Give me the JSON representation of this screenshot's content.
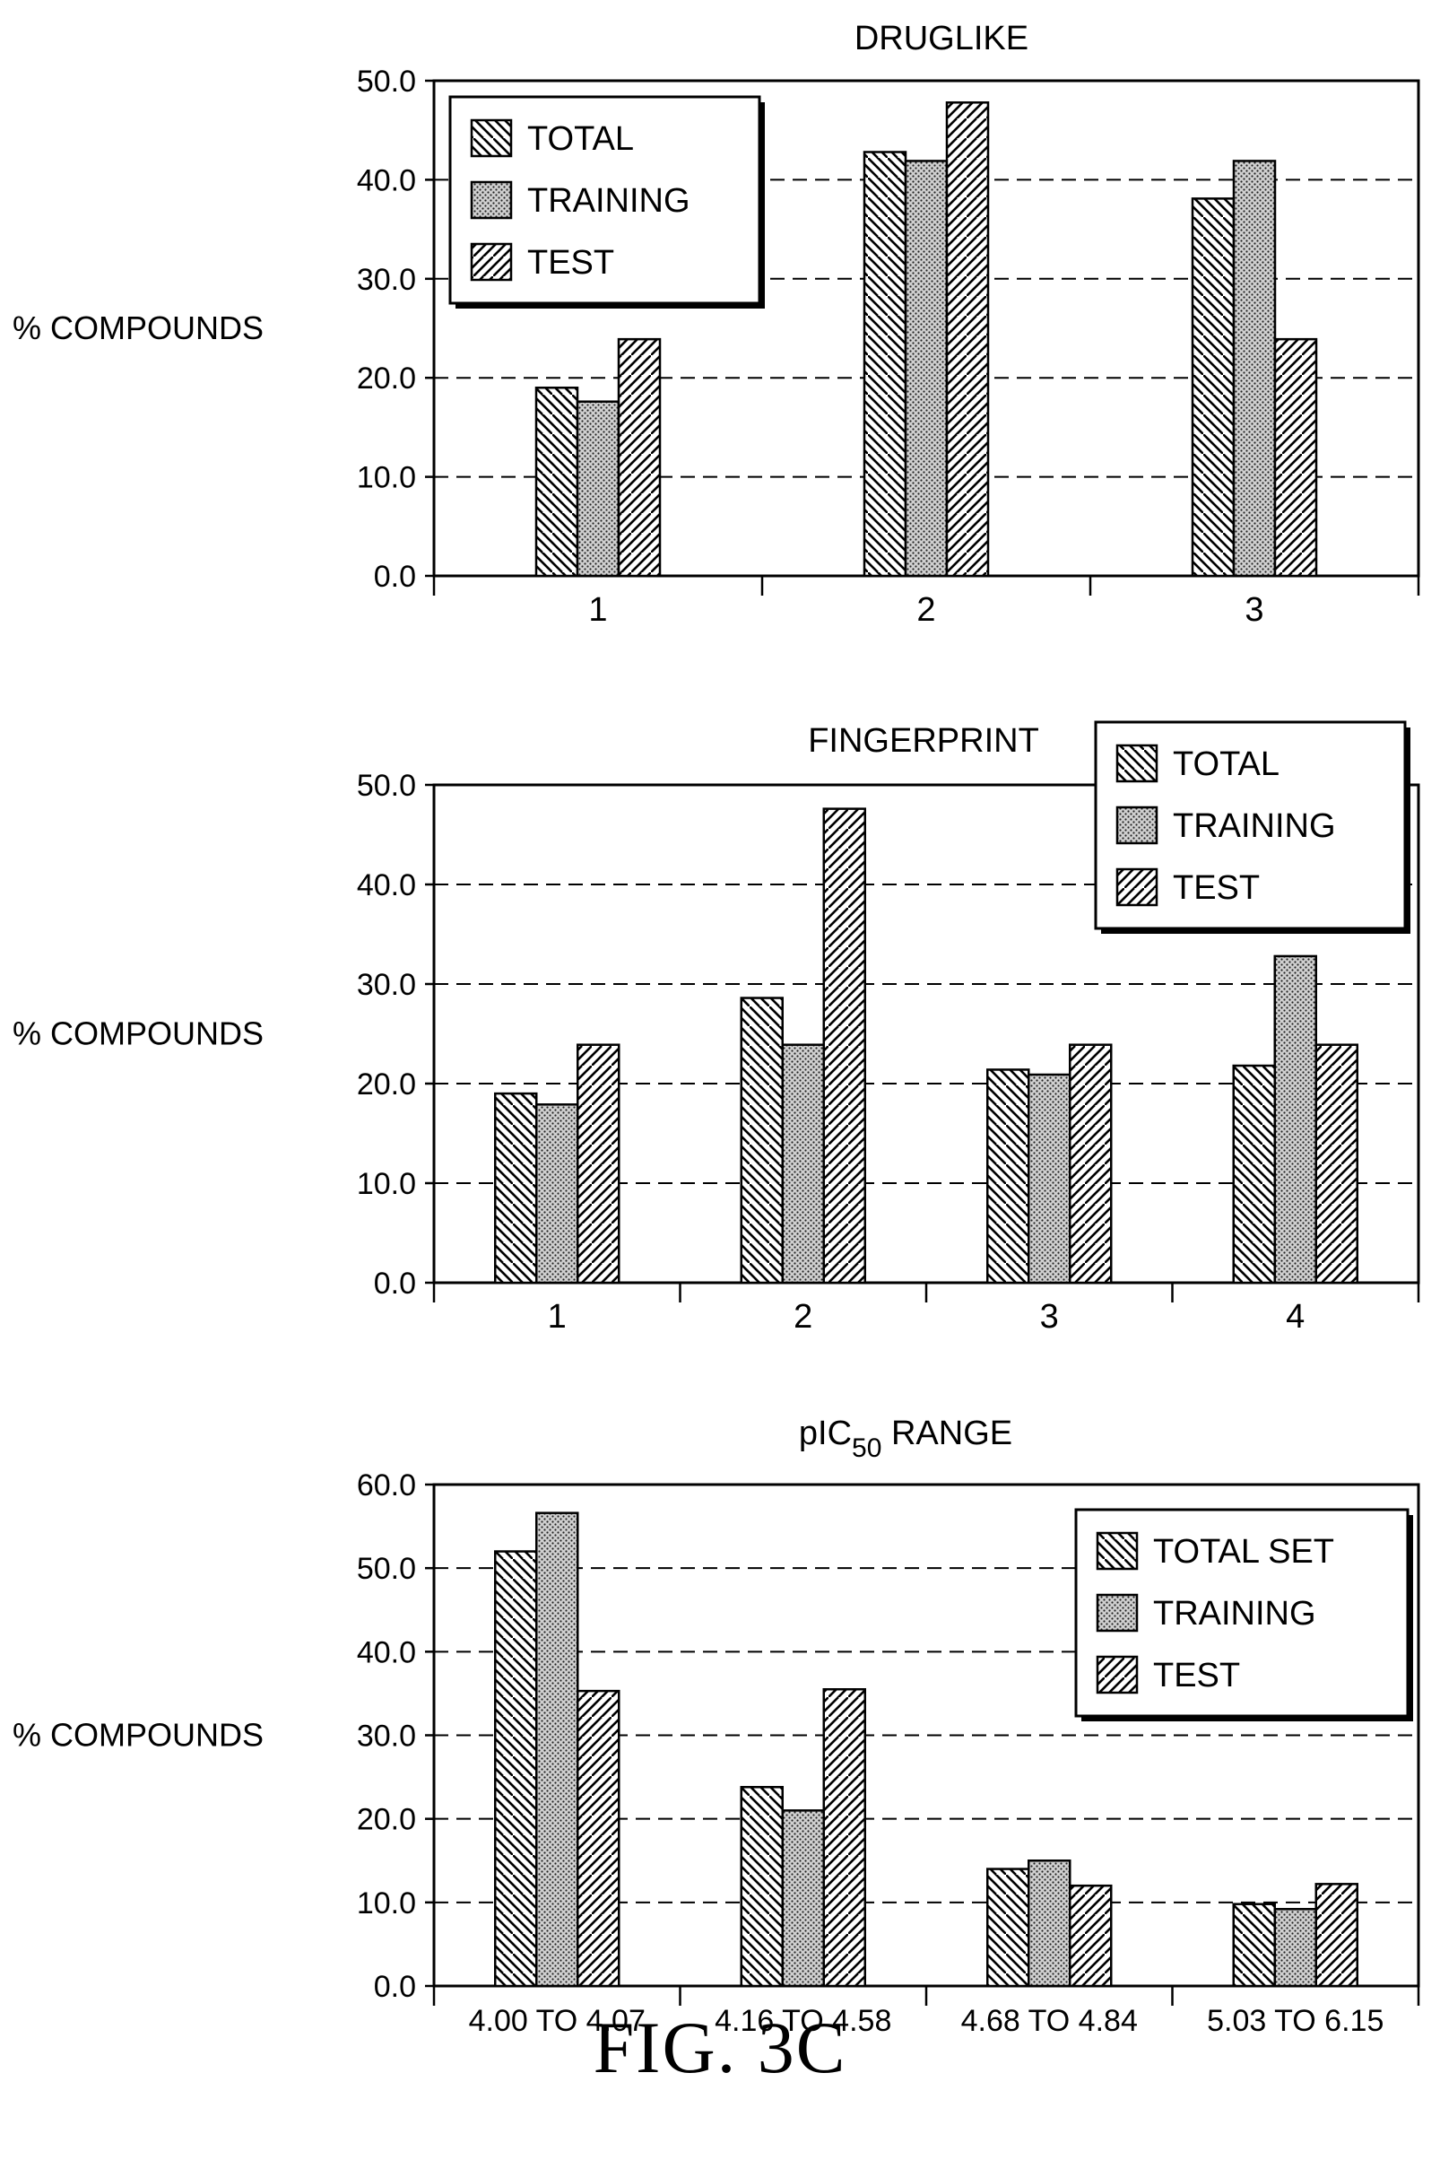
{
  "figure_caption": "FIG. 3C",
  "chart_data": [
    {
      "type": "bar",
      "title": "DRUGLIKE",
      "ylabel": "% COMPOUNDS",
      "xlabel": "",
      "categories": [
        "1",
        "2",
        "3"
      ],
      "ylim": [
        0,
        50
      ],
      "yticks": [
        "0.0",
        "10.0",
        "20.0",
        "30.0",
        "40.0",
        "50.0"
      ],
      "grid": "dashed horizontal",
      "legend_position": "top-left",
      "series": [
        {
          "name": "TOTAL",
          "pattern": "backslash",
          "values": [
            19,
            42.8,
            38.1
          ]
        },
        {
          "name": "TRAINING",
          "pattern": "dots",
          "values": [
            17.6,
            41.9,
            41.9
          ]
        },
        {
          "name": "TEST",
          "pattern": "slash",
          "values": [
            23.9,
            47.8,
            23.9
          ]
        }
      ]
    },
    {
      "type": "bar",
      "title": "FINGERPRINT",
      "ylabel": "% COMPOUNDS",
      "xlabel": "",
      "categories": [
        "1",
        "2",
        "3",
        "4"
      ],
      "ylim": [
        0,
        50
      ],
      "yticks": [
        "0.0",
        "10.0",
        "20.0",
        "30.0",
        "40.0",
        "50.0"
      ],
      "grid": "dashed horizontal",
      "legend_position": "top-right",
      "series": [
        {
          "name": "TOTAL",
          "pattern": "backslash",
          "values": [
            19,
            28.6,
            21.4,
            21.8
          ]
        },
        {
          "name": "TRAINING",
          "pattern": "dots",
          "values": [
            17.9,
            23.9,
            20.9,
            32.8
          ]
        },
        {
          "name": "TEST",
          "pattern": "slash",
          "values": [
            23.9,
            47.6,
            23.9,
            23.9
          ]
        }
      ]
    },
    {
      "type": "bar",
      "title": "pIC",
      "title_subscript": "50",
      "title_suffix": " RANGE",
      "ylabel": "% COMPOUNDS",
      "xlabel": "",
      "categories": [
        "4.00 TO 4.07",
        "4.16 TO 4.58",
        "4.68 TO 4.84",
        "5.03 TO 6.15"
      ],
      "ylim": [
        0,
        60
      ],
      "yticks": [
        "0.0",
        "10.0",
        "20.0",
        "30.0",
        "40.0",
        "50.0",
        "60.0"
      ],
      "grid": "dashed horizontal",
      "legend_position": "top-right",
      "series": [
        {
          "name": "TOTAL SET",
          "pattern": "backslash",
          "values": [
            52,
            23.8,
            14,
            9.8
          ]
        },
        {
          "name": "TRAINING",
          "pattern": "dots",
          "values": [
            56.6,
            21,
            15,
            9.2
          ]
        },
        {
          "name": "TEST",
          "pattern": "slash",
          "values": [
            35.3,
            35.5,
            12,
            12.2
          ]
        }
      ]
    }
  ]
}
